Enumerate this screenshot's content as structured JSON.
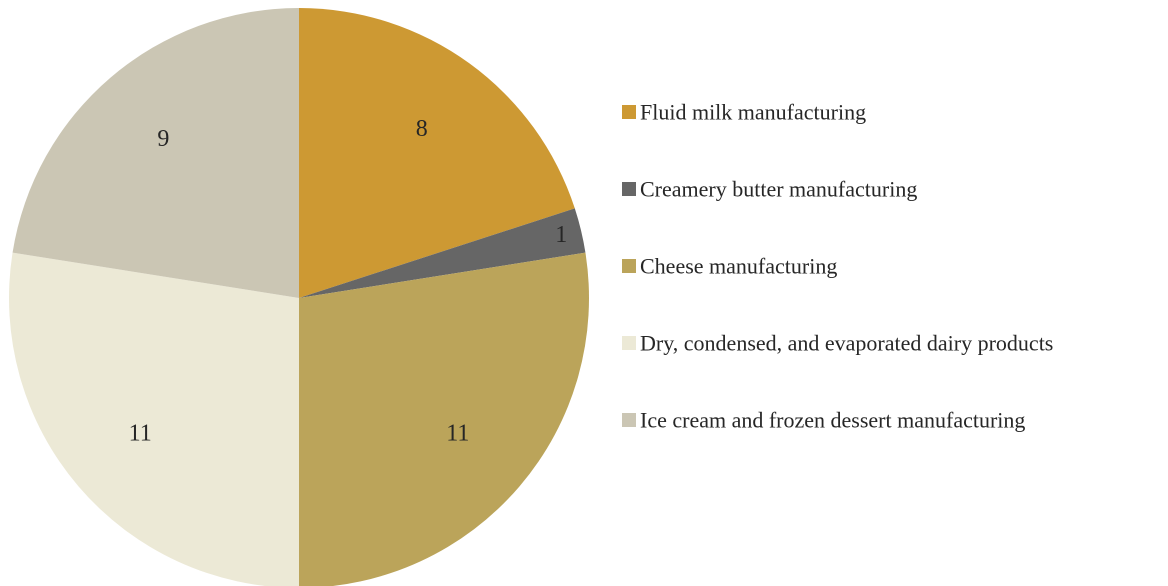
{
  "chart_data": {
    "type": "pie",
    "title": "",
    "categories": [
      "Fluid milk manufacturing",
      "Creamery butter manufacturing",
      "Cheese manufacturing",
      "Dry, condensed, and evaporated dairy products",
      "Ice cream and frozen dessert manufacturing"
    ],
    "values": [
      8,
      1,
      11,
      11,
      9
    ],
    "colors": [
      "#CD9933",
      "#666666",
      "#BBA45A",
      "#ECE9D6",
      "#CBC6B4"
    ],
    "data_labels": [
      "8",
      "1",
      "11",
      "11",
      "9"
    ],
    "start_angle_deg": 0,
    "direction": "clockwise",
    "legend_position": "right"
  }
}
